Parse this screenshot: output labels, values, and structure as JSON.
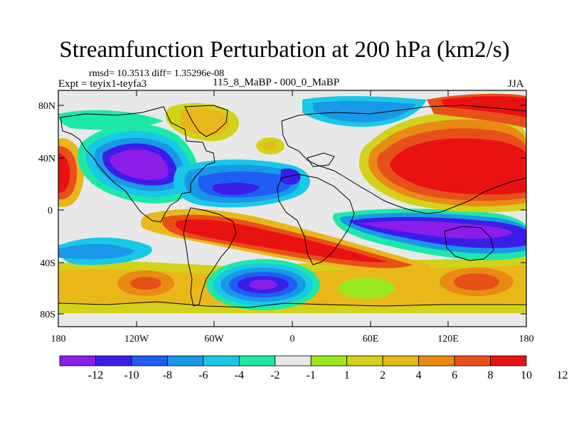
{
  "title": "Streamfunction Perturbation at 200 hPa (km2/s)",
  "stats": "rmsd= 10.3513 diff= 1.35296e-08",
  "experiment": "Expt = teyix1-teyfa3",
  "period": "115_8_MaBP - 000_0_MaBP",
  "season": "JJA",
  "lat_ticks": [
    "80N",
    "40N",
    "0",
    "40S",
    "80S"
  ],
  "lon_ticks": [
    "180",
    "120W",
    "60W",
    "0",
    "60E",
    "120E",
    "180"
  ],
  "colorbar": {
    "colors": [
      "#8b1de8",
      "#3c1de8",
      "#1f5ef0",
      "#1a98e8",
      "#19c8e6",
      "#1ee8a8",
      "#e8e8e8",
      "#9be81d",
      "#d2d21a",
      "#e8b81a",
      "#e88a14",
      "#e8501a",
      "#e81212"
    ],
    "labels": [
      "-12",
      "-10",
      "-8",
      "-6",
      "-4",
      "-2",
      "-1",
      "1",
      "2",
      "4",
      "6",
      "8",
      "10",
      "12"
    ]
  },
  "map": {
    "lon_range": [
      -180,
      180
    ],
    "lat_range": [
      -90,
      90
    ]
  }
}
